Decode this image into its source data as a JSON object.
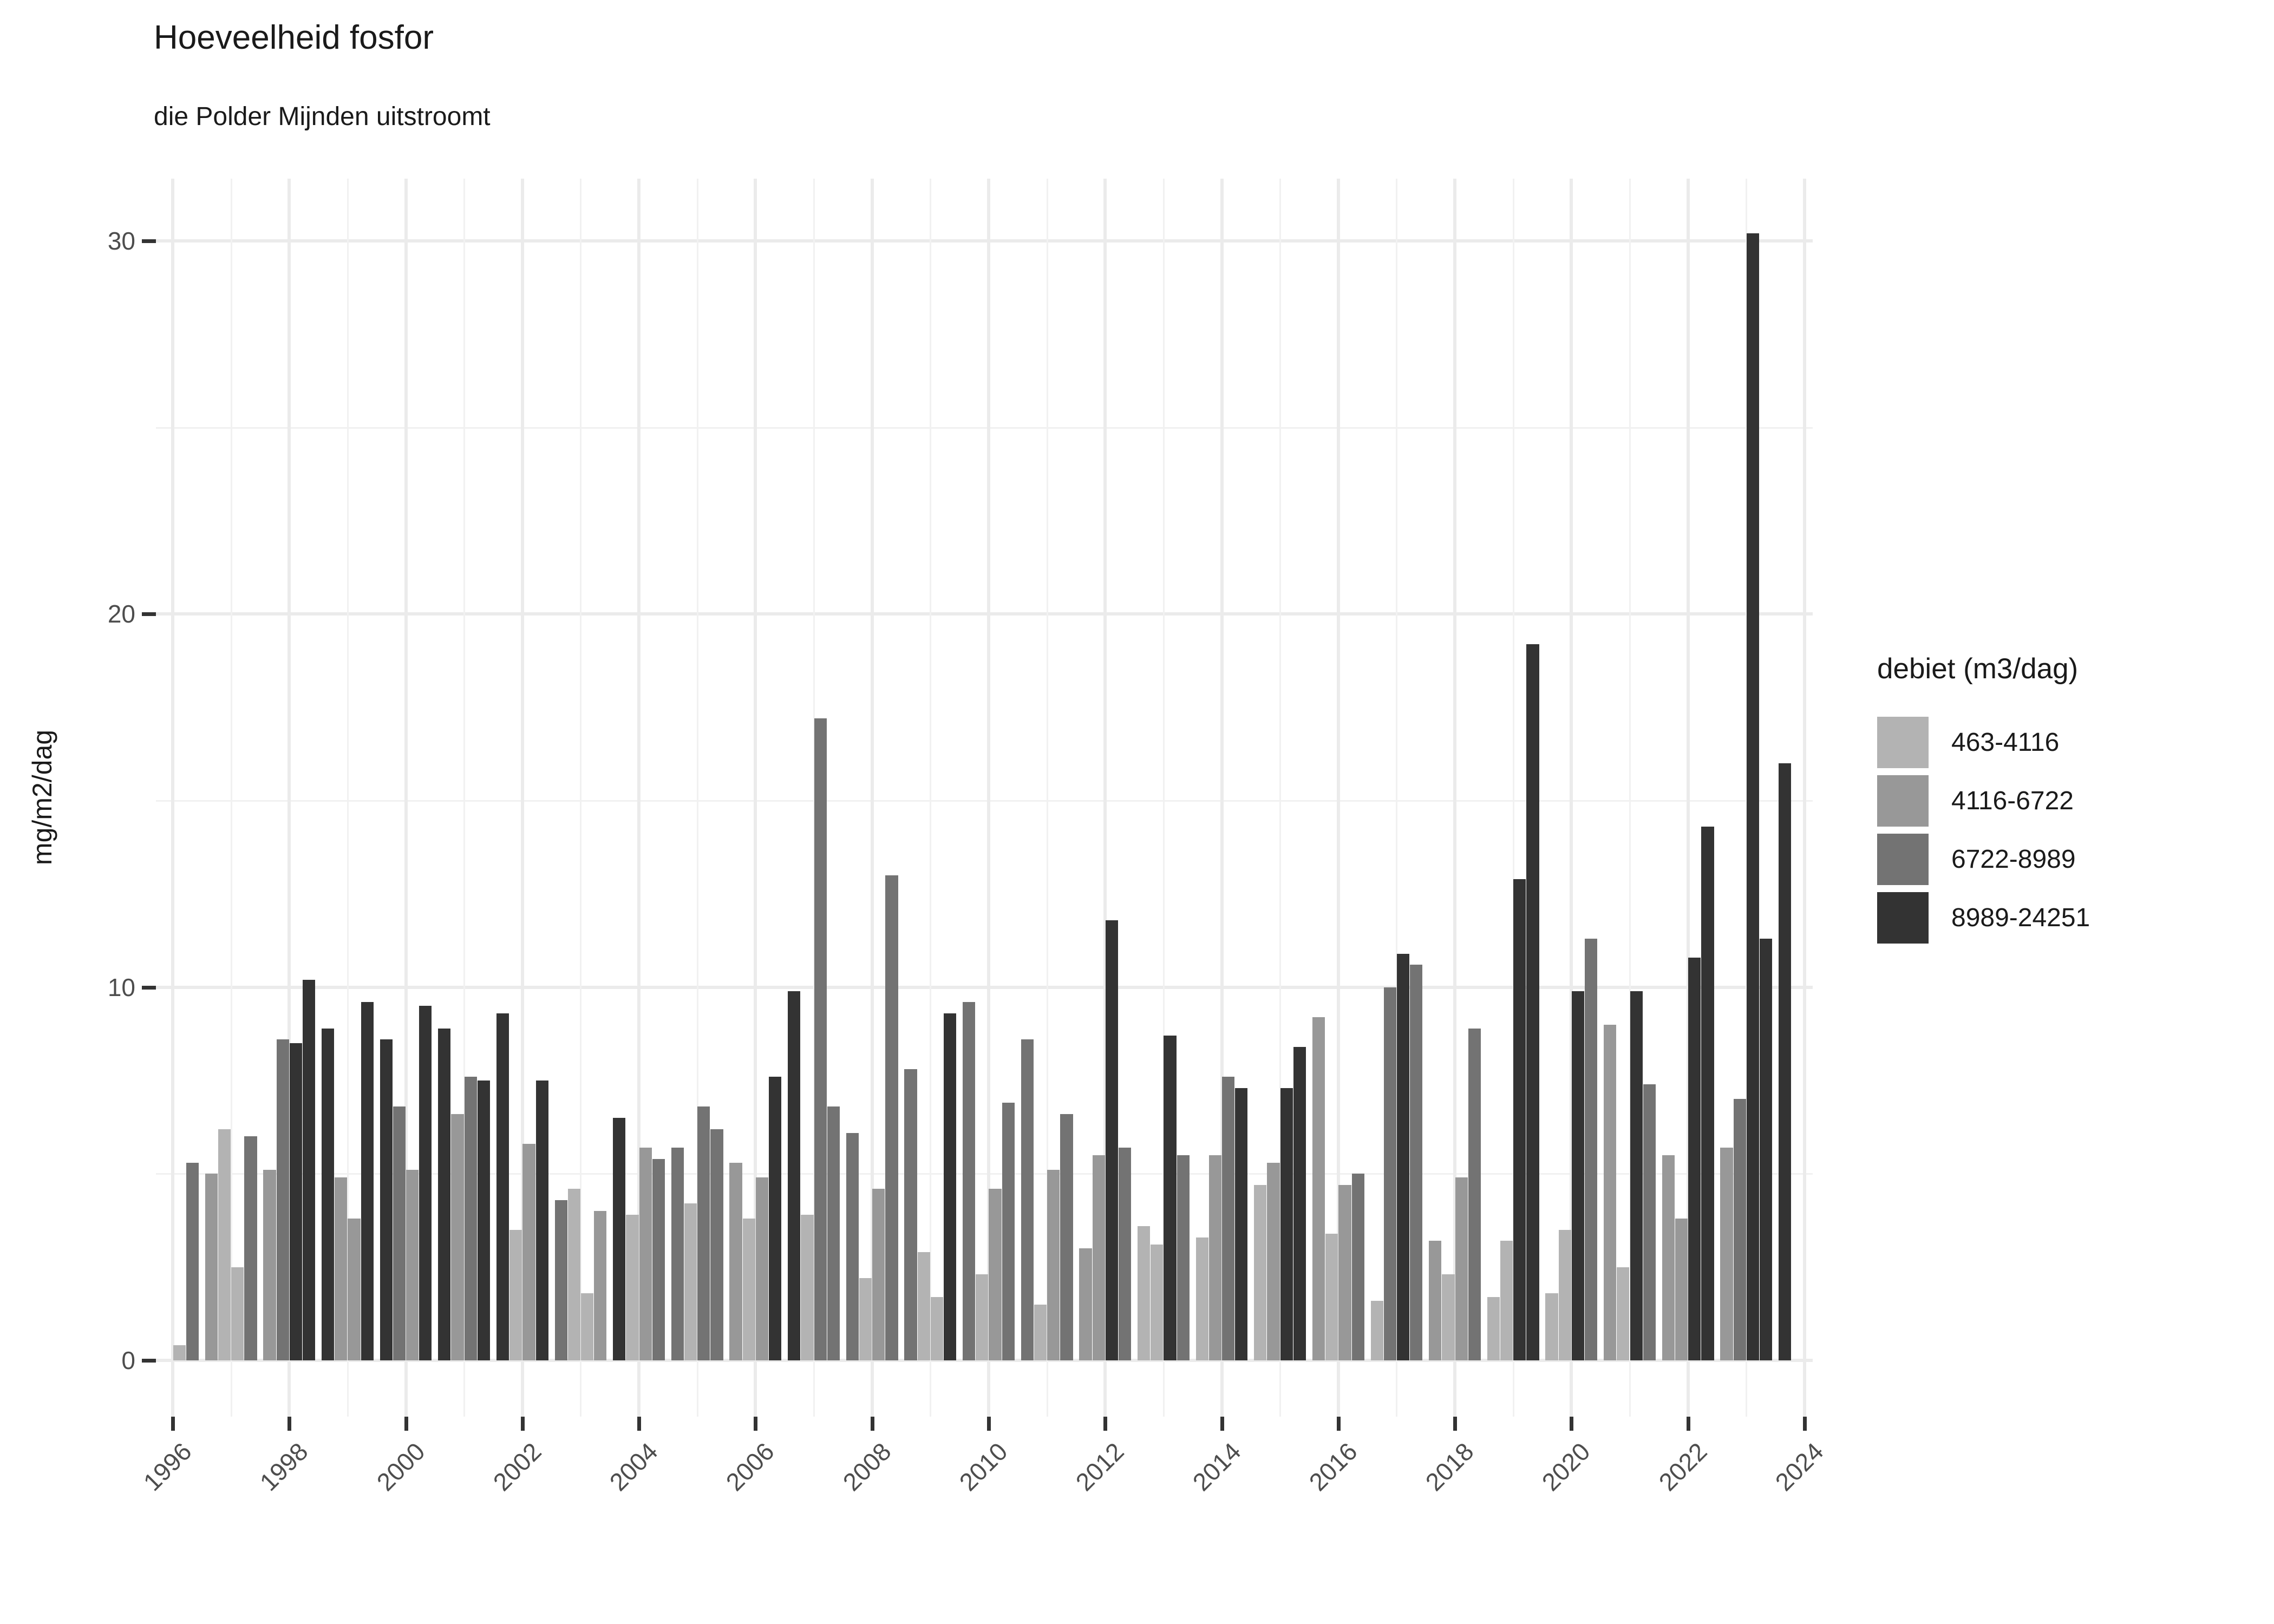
{
  "header": {
    "title": "Hoeveelheid fosfor",
    "subtitle": "die Polder Mijnden uitstroomt"
  },
  "y_axis": {
    "title": "mg/m2/dag",
    "tick_labels": [
      "0",
      "10",
      "20",
      "30"
    ]
  },
  "x_axis": {
    "tick_labels": [
      "1996",
      "1998",
      "2000",
      "2002",
      "2004",
      "2006",
      "2008",
      "2010",
      "2012",
      "2014",
      "2016",
      "2018",
      "2020",
      "2022",
      "2024"
    ]
  },
  "legend": {
    "title": "debiet (m3/dag)",
    "items": [
      {
        "label": "463-4116",
        "color": "#b3b3b3"
      },
      {
        "label": "4116-6722",
        "color": "#989898"
      },
      {
        "label": "6722-8989",
        "color": "#737373"
      },
      {
        "label": "8989-24251",
        "color": "#333333"
      }
    ]
  },
  "chart_data": {
    "type": "bar",
    "title": "Hoeveelheid fosfor",
    "subtitle": "die Polder Mijnden uitstroomt",
    "xlabel": "",
    "ylabel": "mg/m2/dag",
    "ylim": [
      0,
      31.7
    ],
    "y_major_ticks": [
      0,
      10,
      20,
      30
    ],
    "y_minor_gridlines": [
      5,
      15,
      25
    ],
    "x_major_tick_years": [
      1996,
      1998,
      2000,
      2002,
      2004,
      2006,
      2008,
      2010,
      2012,
      2014,
      2016,
      2018,
      2020,
      2022,
      2024
    ],
    "x_minor_gridline_years": [
      1997,
      1999,
      2001,
      2003,
      2005,
      2007,
      2009,
      2011,
      2013,
      2015,
      2017,
      2019,
      2021,
      2023
    ],
    "grid": "on",
    "legend_position": "right",
    "legend_title": "debiet (m3/dag)",
    "debiet_categories": [
      {
        "label": "463-4116",
        "color": "#b3b3b3"
      },
      {
        "label": "4116-6722",
        "color": "#989898"
      },
      {
        "label": "6722-8989",
        "color": "#737373"
      },
      {
        "label": "8989-24251",
        "color": "#333333"
      }
    ],
    "bars_format": "[year, quarter, value_mg_m2_dag, debiet_category_index]",
    "bars": [
      [
        1996,
        3,
        0.4,
        0
      ],
      [
        1996,
        4,
        5.3,
        2
      ],
      [
        1997,
        1,
        5.0,
        1
      ],
      [
        1997,
        2,
        6.2,
        0
      ],
      [
        1997,
        3,
        2.5,
        0
      ],
      [
        1997,
        4,
        6.0,
        2
      ],
      [
        1998,
        1,
        5.1,
        1
      ],
      [
        1998,
        2,
        8.6,
        2
      ],
      [
        1998,
        3,
        8.5,
        3
      ],
      [
        1998,
        4,
        10.2,
        3
      ],
      [
        1999,
        1,
        8.9,
        3
      ],
      [
        1999,
        2,
        4.9,
        1
      ],
      [
        1999,
        3,
        3.8,
        1
      ],
      [
        1999,
        4,
        9.6,
        3
      ],
      [
        2000,
        1,
        8.6,
        3
      ],
      [
        2000,
        2,
        6.8,
        2
      ],
      [
        2000,
        3,
        5.1,
        1
      ],
      [
        2000,
        4,
        9.5,
        3
      ],
      [
        2001,
        1,
        8.9,
        3
      ],
      [
        2001,
        2,
        6.6,
        1
      ],
      [
        2001,
        3,
        7.6,
        2
      ],
      [
        2001,
        4,
        7.5,
        3
      ],
      [
        2002,
        1,
        9.3,
        3
      ],
      [
        2002,
        2,
        3.5,
        0
      ],
      [
        2002,
        3,
        5.8,
        1
      ],
      [
        2002,
        4,
        7.5,
        3
      ],
      [
        2003,
        1,
        4.3,
        2
      ],
      [
        2003,
        2,
        4.6,
        0
      ],
      [
        2003,
        3,
        1.8,
        0
      ],
      [
        2003,
        4,
        4.0,
        1
      ],
      [
        2004,
        1,
        6.5,
        3
      ],
      [
        2004,
        2,
        3.9,
        0
      ],
      [
        2004,
        3,
        5.7,
        1
      ],
      [
        2004,
        4,
        5.4,
        2
      ],
      [
        2005,
        1,
        5.7,
        2
      ],
      [
        2005,
        2,
        4.2,
        0
      ],
      [
        2005,
        3,
        6.8,
        2
      ],
      [
        2005,
        4,
        6.2,
        2
      ],
      [
        2006,
        1,
        5.3,
        1
      ],
      [
        2006,
        2,
        3.8,
        0
      ],
      [
        2006,
        3,
        4.9,
        1
      ],
      [
        2006,
        4,
        7.6,
        3
      ],
      [
        2007,
        1,
        9.9,
        3
      ],
      [
        2007,
        2,
        3.9,
        0
      ],
      [
        2007,
        3,
        17.2,
        2
      ],
      [
        2007,
        4,
        6.8,
        2
      ],
      [
        2008,
        1,
        6.1,
        2
      ],
      [
        2008,
        2,
        2.2,
        0
      ],
      [
        2008,
        3,
        4.6,
        1
      ],
      [
        2008,
        4,
        13.0,
        2
      ],
      [
        2009,
        1,
        7.8,
        2
      ],
      [
        2009,
        2,
        2.9,
        0
      ],
      [
        2009,
        3,
        1.7,
        0
      ],
      [
        2009,
        4,
        9.3,
        3
      ],
      [
        2010,
        1,
        9.6,
        2
      ],
      [
        2010,
        2,
        2.3,
        0
      ],
      [
        2010,
        3,
        4.6,
        1
      ],
      [
        2010,
        4,
        6.9,
        2
      ],
      [
        2011,
        1,
        8.6,
        2
      ],
      [
        2011,
        2,
        1.5,
        0
      ],
      [
        2011,
        3,
        5.1,
        1
      ],
      [
        2011,
        4,
        6.6,
        2
      ],
      [
        2012,
        1,
        3.0,
        1
      ],
      [
        2012,
        2,
        5.5,
        1
      ],
      [
        2012,
        3,
        11.8,
        3
      ],
      [
        2012,
        4,
        5.7,
        2
      ],
      [
        2013,
        1,
        3.6,
        0
      ],
      [
        2013,
        2,
        3.1,
        0
      ],
      [
        2013,
        3,
        8.7,
        3
      ],
      [
        2013,
        4,
        5.5,
        2
      ],
      [
        2014,
        1,
        3.3,
        0
      ],
      [
        2014,
        2,
        5.5,
        1
      ],
      [
        2014,
        3,
        7.6,
        2
      ],
      [
        2014,
        4,
        7.3,
        3
      ],
      [
        2015,
        1,
        4.7,
        0
      ],
      [
        2015,
        2,
        5.3,
        1
      ],
      [
        2015,
        3,
        7.3,
        3
      ],
      [
        2015,
        4,
        8.4,
        3
      ],
      [
        2016,
        1,
        9.2,
        1
      ],
      [
        2016,
        2,
        3.4,
        0
      ],
      [
        2016,
        3,
        4.7,
        1
      ],
      [
        2016,
        4,
        5.0,
        2
      ],
      [
        2017,
        1,
        1.6,
        0
      ],
      [
        2017,
        2,
        10.0,
        2
      ],
      [
        2017,
        3,
        10.9,
        3
      ],
      [
        2017,
        4,
        10.6,
        2
      ],
      [
        2018,
        1,
        3.2,
        1
      ],
      [
        2018,
        2,
        2.3,
        0
      ],
      [
        2018,
        3,
        4.9,
        1
      ],
      [
        2018,
        4,
        8.9,
        2
      ],
      [
        2019,
        1,
        1.7,
        0
      ],
      [
        2019,
        2,
        3.2,
        0
      ],
      [
        2019,
        3,
        12.9,
        3
      ],
      [
        2019,
        4,
        19.2,
        3
      ],
      [
        2020,
        1,
        1.8,
        0
      ],
      [
        2020,
        2,
        3.5,
        0
      ],
      [
        2020,
        3,
        9.9,
        3
      ],
      [
        2020,
        4,
        11.3,
        2
      ],
      [
        2021,
        1,
        9.0,
        1
      ],
      [
        2021,
        2,
        2.5,
        0
      ],
      [
        2021,
        3,
        9.9,
        3
      ],
      [
        2021,
        4,
        7.4,
        2
      ],
      [
        2022,
        1,
        5.5,
        1
      ],
      [
        2022,
        2,
        3.8,
        1
      ],
      [
        2022,
        3,
        10.8,
        3
      ],
      [
        2022,
        4,
        14.3,
        3
      ],
      [
        2023,
        1,
        5.7,
        1
      ],
      [
        2023,
        2,
        7.0,
        2
      ],
      [
        2023,
        3,
        30.2,
        3
      ],
      [
        2023,
        4,
        11.3,
        3
      ],
      [
        2024,
        1,
        16.0,
        3
      ]
    ]
  }
}
